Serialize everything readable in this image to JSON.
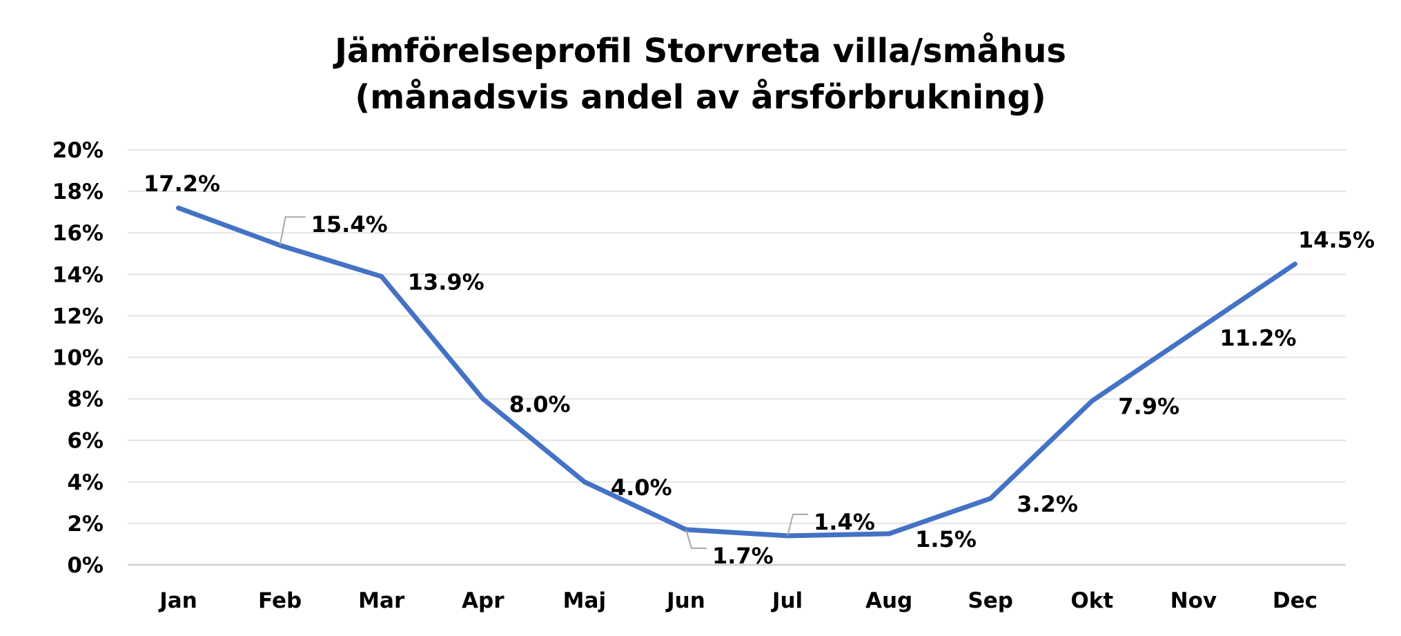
{
  "chart_data": {
    "type": "line",
    "title": "Jämförelseprofil Storvreta villa/småhus",
    "subtitle": "(månadsvis andel av årsförbrukning)",
    "categories": [
      "Jan",
      "Feb",
      "Mar",
      "Apr",
      "Maj",
      "Jun",
      "Jul",
      "Aug",
      "Sep",
      "Okt",
      "Nov",
      "Dec"
    ],
    "series": [
      {
        "values": [
          17.2,
          15.4,
          13.9,
          8.0,
          4.0,
          1.7,
          1.4,
          1.5,
          3.2,
          7.9,
          11.2,
          14.5
        ],
        "data_labels": [
          "17.2%",
          "15.4%",
          "13.9%",
          "8.0%",
          "4.0%",
          "1.7%",
          "1.4%",
          "1.5%",
          "3.2%",
          "7.9%",
          "11.2%",
          "14.5%"
        ],
        "color": "#4472C4"
      }
    ],
    "y_ticks": [
      "0%",
      "2%",
      "4%",
      "6%",
      "8%",
      "10%",
      "12%",
      "14%",
      "16%",
      "18%",
      "20%"
    ],
    "xlabel": "",
    "ylabel": "",
    "ylim": [
      0,
      20
    ],
    "grid": true,
    "legend": "none",
    "colors": {
      "line": "#4472C4",
      "grid": "#e3e3e3",
      "axis": "#d0d0d0",
      "leader": "#a6a6a6",
      "text": "#000000"
    }
  }
}
